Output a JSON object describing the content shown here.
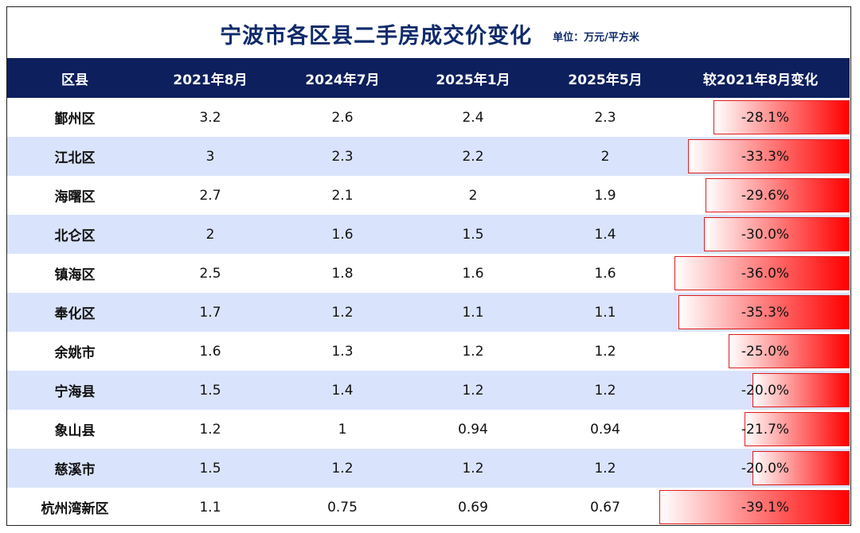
{
  "title": "宁波市各区县二手房成交价变化",
  "unit": "单位：万元/平方米",
  "chart_data": {
    "type": "table",
    "columns": [
      "区县",
      "2021年8月",
      "2024年7月",
      "2025年1月",
      "2025年5月",
      "较2021年8月变化"
    ],
    "rows": [
      {
        "district": "鄞州区",
        "v2021_08": "3.2",
        "v2024_07": "2.6",
        "v2025_01": "2.4",
        "v2025_05": "2.3",
        "change": "-28.1%",
        "change_value": -28.1
      },
      {
        "district": "江北区",
        "v2021_08": "3",
        "v2024_07": "2.3",
        "v2025_01": "2.2",
        "v2025_05": "2",
        "change": "-33.3%",
        "change_value": -33.3
      },
      {
        "district": "海曙区",
        "v2021_08": "2.7",
        "v2024_07": "2.1",
        "v2025_01": "2",
        "v2025_05": "1.9",
        "change": "-29.6%",
        "change_value": -29.6
      },
      {
        "district": "北仑区",
        "v2021_08": "2",
        "v2024_07": "1.6",
        "v2025_01": "1.5",
        "v2025_05": "1.4",
        "change": "-30.0%",
        "change_value": -30.0
      },
      {
        "district": "镇海区",
        "v2021_08": "2.5",
        "v2024_07": "1.8",
        "v2025_01": "1.6",
        "v2025_05": "1.6",
        "change": "-36.0%",
        "change_value": -36.0
      },
      {
        "district": "奉化区",
        "v2021_08": "1.7",
        "v2024_07": "1.2",
        "v2025_01": "1.1",
        "v2025_05": "1.1",
        "change": "-35.3%",
        "change_value": -35.3
      },
      {
        "district": "余姚市",
        "v2021_08": "1.6",
        "v2024_07": "1.3",
        "v2025_01": "1.2",
        "v2025_05": "1.2",
        "change": "-25.0%",
        "change_value": -25.0
      },
      {
        "district": "宁海县",
        "v2021_08": "1.5",
        "v2024_07": "1.4",
        "v2025_01": "1.2",
        "v2025_05": "1.2",
        "change": "-20.0%",
        "change_value": -20.0
      },
      {
        "district": "象山县",
        "v2021_08": "1.2",
        "v2024_07": "1",
        "v2025_01": "0.94",
        "v2025_05": "0.94",
        "change": "-21.7%",
        "change_value": -21.7
      },
      {
        "district": "慈溪市",
        "v2021_08": "1.5",
        "v2024_07": "1.2",
        "v2025_01": "1.2",
        "v2025_05": "1.2",
        "change": "-20.0%",
        "change_value": -20.0
      },
      {
        "district": "杭州湾新区",
        "v2021_08": "1.1",
        "v2024_07": "0.75",
        "v2025_01": "0.69",
        "v2025_05": "0.67",
        "change": "-39.1%",
        "change_value": -39.1
      }
    ],
    "colors": {
      "header_bg": "#0d1f5c",
      "alt_row_bg": "#d9e3fb",
      "bar": "#ff0000",
      "title": "#0e2a6b"
    }
  }
}
